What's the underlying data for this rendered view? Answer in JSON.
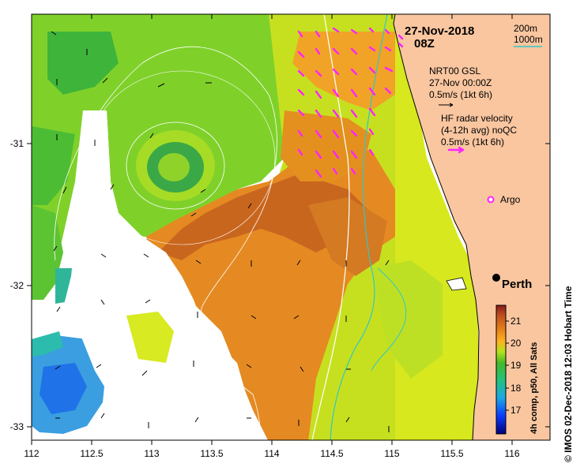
{
  "date_line": "27-Nov-2018",
  "time_line": "08Z",
  "depth_contours": [
    "200m",
    "1000m"
  ],
  "wind_legend": {
    "source": "NRT00 GSL",
    "time": "27-Nov 00:00Z",
    "scale": "0.5m/s (1kt 6h)"
  },
  "radar_legend": {
    "line1": "HF radar velocity",
    "line2": "(4-12h avg) noQC",
    "scale": "0.5m/s (1kt 6h)"
  },
  "argo_label": "Argo",
  "city_label": "Perth",
  "colorbar": {
    "ticks": [
      "21",
      "20",
      "19",
      "18",
      "17"
    ],
    "caption": "4h comp, p50, All Sats"
  },
  "x_ticks": [
    "112",
    "112.5",
    "113",
    "113.5",
    "114",
    "114.5",
    "115",
    "115.5",
    "116"
  ],
  "y_ticks": [
    "-31",
    "-32",
    "-33"
  ],
  "credit": "© IMOS 02-Dec-2018 12:03 Hobart Time",
  "colors": {
    "land": "#f9c6a0",
    "radar_arrow": "#ff22ff",
    "contour_200": "#33c6c6",
    "contour_1000": "#ffffff"
  }
}
